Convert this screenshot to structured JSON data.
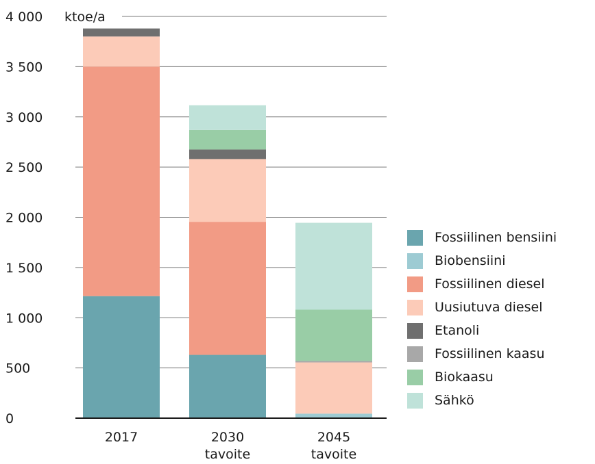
{
  "chart_data": {
    "type": "bar",
    "stacked": true,
    "unit_label": "ktoe/a",
    "categories": [
      {
        "line1": "2017",
        "line2": ""
      },
      {
        "line1": "2030",
        "line2": "tavoite"
      },
      {
        "line1": "2045",
        "line2": "tavoite"
      }
    ],
    "y_ticks": [
      {
        "value": 0,
        "label": "0"
      },
      {
        "value": 500,
        "label": "500"
      },
      {
        "value": 1000,
        "label": "1 000"
      },
      {
        "value": 1500,
        "label": "1 500"
      },
      {
        "value": 2000,
        "label": "2 000"
      },
      {
        "value": 2500,
        "label": "2 500"
      },
      {
        "value": 3000,
        "label": "3 000"
      },
      {
        "value": 3500,
        "label": "3 500"
      },
      {
        "value": 4000,
        "label": "4 000"
      }
    ],
    "ylim": [
      0,
      4000
    ],
    "grid": "horizontal",
    "legend_position": "right",
    "series": [
      {
        "name": "Fossiilinen bensiini",
        "color": "#6aa5ae",
        "values": [
          1215,
          630,
          0
        ]
      },
      {
        "name": "Biobensiini",
        "color": "#9dcbd3",
        "values": [
          0,
          0,
          45
        ]
      },
      {
        "name": "Fossiilinen diesel",
        "color": "#f29b85",
        "values": [
          2285,
          1325,
          0
        ]
      },
      {
        "name": "Uusiutuva diesel",
        "color": "#fccbb8",
        "values": [
          300,
          625,
          510
        ]
      },
      {
        "name": "Etanoli",
        "color": "#6f6f6f",
        "values": [
          80,
          95,
          0
        ]
      },
      {
        "name": "Fossiilinen kaasu",
        "color": "#a8a8a8",
        "values": [
          0,
          0,
          15
        ]
      },
      {
        "name": "Biokaasu",
        "color": "#99cda6",
        "values": [
          0,
          195,
          510
        ]
      },
      {
        "name": "Sähkö",
        "color": "#bfe2d9",
        "values": [
          0,
          245,
          865
        ]
      }
    ]
  }
}
